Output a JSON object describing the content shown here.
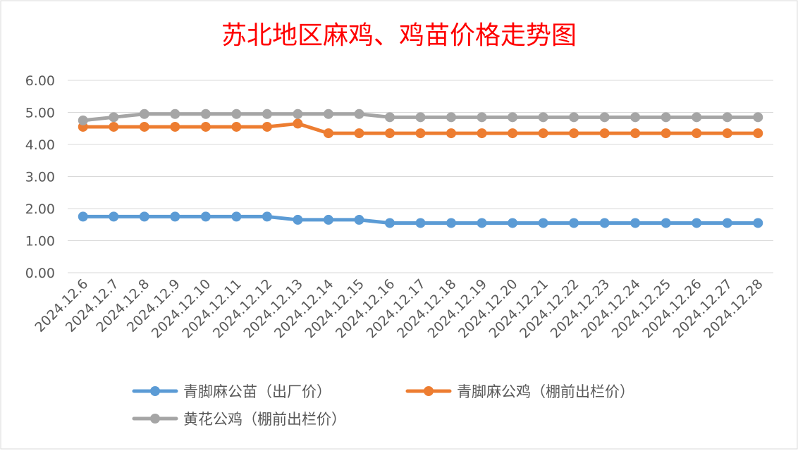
{
  "chart_data": {
    "type": "line",
    "title": "苏北地区麻鸡、鸡苗价格走势图",
    "xlabel": "",
    "ylabel": "",
    "ylim": [
      0,
      6
    ],
    "yticks": [
      "0.00",
      "1.00",
      "2.00",
      "3.00",
      "4.00",
      "5.00",
      "6.00"
    ],
    "grid": true,
    "legend_position": "bottom",
    "categories": [
      "2024.12.6",
      "2024.12.7",
      "2024.12.8",
      "2024.12.9",
      "2024.12.10",
      "2024.12.11",
      "2024.12.12",
      "2024.12.13",
      "2024.12.14",
      "2024.12.15",
      "2024.12.16",
      "2024.12.17",
      "2024.12.18",
      "2024.12.19",
      "2024.12.20",
      "2024.12.21",
      "2024.12.22",
      "2024.12.23",
      "2024.12.24",
      "2024.12.25",
      "2024.12.26",
      "2024.12.27",
      "2024.12.28"
    ],
    "series": [
      {
        "name": "青脚麻公苗（出厂价）",
        "color": "#5B9BD5",
        "values": [
          1.75,
          1.75,
          1.75,
          1.75,
          1.75,
          1.75,
          1.75,
          1.65,
          1.65,
          1.65,
          1.55,
          1.55,
          1.55,
          1.55,
          1.55,
          1.55,
          1.55,
          1.55,
          1.55,
          1.55,
          1.55,
          1.55,
          1.55
        ]
      },
      {
        "name": "青脚麻公鸡（棚前出栏价）",
        "color": "#ED7D31",
        "values": [
          4.55,
          4.55,
          4.55,
          4.55,
          4.55,
          4.55,
          4.55,
          4.65,
          4.35,
          4.35,
          4.35,
          4.35,
          4.35,
          4.35,
          4.35,
          4.35,
          4.35,
          4.35,
          4.35,
          4.35,
          4.35,
          4.35,
          4.35
        ]
      },
      {
        "name": "黄花公鸡（棚前出栏价）",
        "color": "#A5A5A5",
        "values": [
          4.75,
          4.85,
          4.95,
          4.95,
          4.95,
          4.95,
          4.95,
          4.95,
          4.95,
          4.95,
          4.85,
          4.85,
          4.85,
          4.85,
          4.85,
          4.85,
          4.85,
          4.85,
          4.85,
          4.85,
          4.85,
          4.85,
          4.85
        ]
      }
    ]
  },
  "colors": {
    "title": "#FF0000",
    "gridline": "#D9D9D9",
    "tick_text": "#595959",
    "border": "#D9D9D9"
  }
}
